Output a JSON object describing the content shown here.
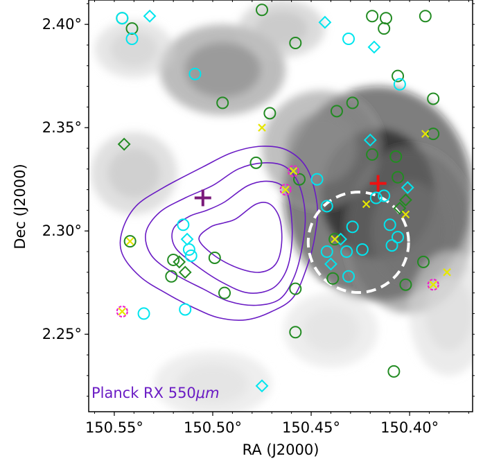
{
  "chart_data": {
    "type": "scatter",
    "title": "",
    "xlabel": "RA (J2000)",
    "ylabel": "Dec (J2000)",
    "xlim": [
      150.563,
      150.368
    ],
    "ylim": [
      2.2125,
      2.4118
    ],
    "x_reversed": true,
    "xticks": [
      150.55,
      150.5,
      150.45,
      150.4
    ],
    "xtick_labels": [
      "150.55°",
      "150.50°",
      "150.45°",
      "150.40°"
    ],
    "yticks": [
      2.4,
      2.35,
      2.3,
      2.25
    ],
    "ytick_labels": [
      "2.40°",
      "2.35°",
      "2.30°",
      "2.25°"
    ],
    "grid": false,
    "annotation": {
      "text": "Planck RX 550",
      "unit": "μm",
      "color": "#6a1bc4"
    },
    "colors": {
      "green_circles": "#228b22",
      "cyan_points": "#00e5ee",
      "contours": "#6a1bc4",
      "red_cross": "#ee1111",
      "purple_cross": "#7a1a7a",
      "yellow_x": "#e6e600",
      "magenta_circles": "#ee22cc"
    },
    "background_blobs": [
      {
        "ra": 150.416,
        "dec": 2.318,
        "rra": 0.048,
        "rdec": 0.052,
        "intensity": 0.92
      },
      {
        "ra": 150.4,
        "dec": 2.3,
        "rra": 0.032,
        "rdec": 0.04,
        "intensity": 0.55
      },
      {
        "ra": 150.445,
        "dec": 2.34,
        "rra": 0.03,
        "rdec": 0.028,
        "intensity": 0.45
      },
      {
        "ra": 150.495,
        "dec": 2.378,
        "rra": 0.032,
        "rdec": 0.022,
        "intensity": 0.48
      },
      {
        "ra": 150.465,
        "dec": 2.398,
        "rra": 0.022,
        "rdec": 0.014,
        "intensity": 0.25
      },
      {
        "ra": 150.54,
        "dec": 2.388,
        "rra": 0.02,
        "rdec": 0.014,
        "intensity": 0.18
      },
      {
        "ra": 150.54,
        "dec": 2.328,
        "rra": 0.022,
        "rdec": 0.02,
        "intensity": 0.22
      },
      {
        "ra": 150.5,
        "dec": 2.226,
        "rra": 0.03,
        "rdec": 0.016,
        "intensity": 0.12
      },
      {
        "ra": 150.38,
        "dec": 2.26,
        "rra": 0.02,
        "rdec": 0.03,
        "intensity": 0.14
      },
      {
        "ra": 150.44,
        "dec": 2.252,
        "rra": 0.024,
        "rdec": 0.018,
        "intensity": 0.12
      }
    ],
    "contours": [
      {
        "level": 1,
        "points": [
          [
            150.505,
            2.331
          ],
          [
            150.49,
            2.338
          ],
          [
            150.475,
            2.341
          ],
          [
            150.462,
            2.339
          ],
          [
            150.452,
            2.33
          ],
          [
            150.447,
            2.313
          ],
          [
            150.448,
            2.298
          ],
          [
            150.452,
            2.283
          ],
          [
            150.459,
            2.268
          ],
          [
            150.47,
            2.261
          ],
          [
            150.483,
            2.257
          ],
          [
            150.497,
            2.258
          ],
          [
            150.51,
            2.263
          ],
          [
            150.524,
            2.27
          ],
          [
            150.537,
            2.278
          ],
          [
            150.546,
            2.289
          ],
          [
            150.546,
            2.3
          ],
          [
            150.539,
            2.312
          ],
          [
            150.525,
            2.321
          ]
        ]
      },
      {
        "level": 2,
        "points": [
          [
            150.5,
            2.322
          ],
          [
            150.487,
            2.33
          ],
          [
            150.474,
            2.333
          ],
          [
            150.463,
            2.331
          ],
          [
            150.456,
            2.322
          ],
          [
            150.453,
            2.307
          ],
          [
            150.455,
            2.29
          ],
          [
            150.459,
            2.277
          ],
          [
            150.466,
            2.267
          ],
          [
            150.478,
            2.264
          ],
          [
            150.492,
            2.266
          ],
          [
            150.505,
            2.272
          ],
          [
            150.519,
            2.279
          ],
          [
            150.531,
            2.288
          ],
          [
            150.534,
            2.299
          ],
          [
            150.527,
            2.309
          ],
          [
            150.514,
            2.316
          ]
        ]
      },
      {
        "level": 3,
        "points": [
          [
            150.494,
            2.314
          ],
          [
            150.482,
            2.322
          ],
          [
            150.471,
            2.324
          ],
          [
            150.463,
            2.32
          ],
          [
            150.46,
            2.307
          ],
          [
            150.46,
            2.292
          ],
          [
            150.463,
            2.28
          ],
          [
            150.47,
            2.272
          ],
          [
            150.482,
            2.27
          ],
          [
            150.495,
            2.275
          ],
          [
            150.508,
            2.283
          ],
          [
            150.519,
            2.292
          ],
          [
            150.52,
            2.301
          ],
          [
            150.512,
            2.307
          ],
          [
            150.503,
            2.31
          ]
        ]
      },
      {
        "level": 4,
        "points": [
          [
            150.488,
            2.306
          ],
          [
            150.478,
            2.313
          ],
          [
            150.471,
            2.313
          ],
          [
            150.466,
            2.306
          ],
          [
            150.465,
            2.294
          ],
          [
            150.468,
            2.284
          ],
          [
            150.476,
            2.28
          ],
          [
            150.487,
            2.282
          ],
          [
            150.499,
            2.288
          ],
          [
            150.507,
            2.296
          ],
          [
            150.501,
            2.302
          ],
          [
            150.494,
            2.304
          ]
        ]
      }
    ],
    "dashed_circle": {
      "ra": 150.426,
      "dec": 2.2945,
      "radius_deg": 0.0255
    },
    "red_cross": {
      "ra": 150.416,
      "dec": 2.323
    },
    "purple_cross": {
      "ra": 150.505,
      "dec": 2.316
    },
    "green_circles": [
      {
        "ra": 150.546,
        "dec": 2.403
      },
      {
        "ra": 150.541,
        "dec": 2.398
      },
      {
        "ra": 150.475,
        "dec": 2.407
      },
      {
        "ra": 150.458,
        "dec": 2.391
      },
      {
        "ra": 150.419,
        "dec": 2.404
      },
      {
        "ra": 150.412,
        "dec": 2.403
      },
      {
        "ra": 150.413,
        "dec": 2.398
      },
      {
        "ra": 150.392,
        "dec": 2.404
      },
      {
        "ra": 150.406,
        "dec": 2.375
      },
      {
        "ra": 150.388,
        "dec": 2.364
      },
      {
        "ra": 150.495,
        "dec": 2.362
      },
      {
        "ra": 150.429,
        "dec": 2.362
      },
      {
        "ra": 150.471,
        "dec": 2.357
      },
      {
        "ra": 150.437,
        "dec": 2.358
      },
      {
        "ra": 150.388,
        "dec": 2.347
      },
      {
        "ra": 150.419,
        "dec": 2.337
      },
      {
        "ra": 150.407,
        "dec": 2.336
      },
      {
        "ra": 150.478,
        "dec": 2.333
      },
      {
        "ra": 150.456,
        "dec": 2.325
      },
      {
        "ra": 150.406,
        "dec": 2.326
      },
      {
        "ra": 150.542,
        "dec": 2.295
      },
      {
        "ra": 150.52,
        "dec": 2.286
      },
      {
        "ra": 150.521,
        "dec": 2.278
      },
      {
        "ra": 150.499,
        "dec": 2.287
      },
      {
        "ra": 150.494,
        "dec": 2.27
      },
      {
        "ra": 150.458,
        "dec": 2.272
      },
      {
        "ra": 150.439,
        "dec": 2.277
      },
      {
        "ra": 150.393,
        "dec": 2.285
      },
      {
        "ra": 150.402,
        "dec": 2.274
      },
      {
        "ra": 150.458,
        "dec": 2.251
      },
      {
        "ra": 150.408,
        "dec": 2.232
      },
      {
        "ra": 150.438,
        "dec": 2.296
      }
    ],
    "cyan_circles": [
      {
        "ra": 150.546,
        "dec": 2.403
      },
      {
        "ra": 150.541,
        "dec": 2.393
      },
      {
        "ra": 150.431,
        "dec": 2.393
      },
      {
        "ra": 150.509,
        "dec": 2.376
      },
      {
        "ra": 150.405,
        "dec": 2.371
      },
      {
        "ra": 150.447,
        "dec": 2.325
      },
      {
        "ra": 150.413,
        "dec": 2.317
      },
      {
        "ra": 150.417,
        "dec": 2.316
      },
      {
        "ra": 150.442,
        "dec": 2.312
      },
      {
        "ra": 150.429,
        "dec": 2.302
      },
      {
        "ra": 150.41,
        "dec": 2.303
      },
      {
        "ra": 150.515,
        "dec": 2.303
      },
      {
        "ra": 150.512,
        "dec": 2.291
      },
      {
        "ra": 150.511,
        "dec": 2.288
      },
      {
        "ra": 150.432,
        "dec": 2.29
      },
      {
        "ra": 150.424,
        "dec": 2.291
      },
      {
        "ra": 150.406,
        "dec": 2.297
      },
      {
        "ra": 150.409,
        "dec": 2.293
      },
      {
        "ra": 150.442,
        "dec": 2.29
      },
      {
        "ra": 150.431,
        "dec": 2.278
      },
      {
        "ra": 150.514,
        "dec": 2.262
      },
      {
        "ra": 150.535,
        "dec": 2.26
      }
    ],
    "cyan_diamonds": [
      {
        "ra": 150.532,
        "dec": 2.404
      },
      {
        "ra": 150.443,
        "dec": 2.401
      },
      {
        "ra": 150.418,
        "dec": 2.389
      },
      {
        "ra": 150.42,
        "dec": 2.344
      },
      {
        "ra": 150.401,
        "dec": 2.321
      },
      {
        "ra": 150.435,
        "dec": 2.296
      },
      {
        "ra": 150.513,
        "dec": 2.296
      },
      {
        "ra": 150.44,
        "dec": 2.284
      },
      {
        "ra": 150.475,
        "dec": 2.225
      }
    ],
    "green_diamonds": [
      {
        "ra": 150.545,
        "dec": 2.342
      },
      {
        "ra": 150.517,
        "dec": 2.285
      },
      {
        "ra": 150.514,
        "dec": 2.28
      },
      {
        "ra": 150.405,
        "dec": 2.311
      },
      {
        "ra": 150.402,
        "dec": 2.315
      }
    ],
    "yellow_x": [
      {
        "ra": 150.475,
        "dec": 2.35
      },
      {
        "ra": 150.392,
        "dec": 2.347
      },
      {
        "ra": 150.459,
        "dec": 2.329
      },
      {
        "ra": 150.463,
        "dec": 2.32
      },
      {
        "ra": 150.422,
        "dec": 2.313
      },
      {
        "ra": 150.402,
        "dec": 2.308
      },
      {
        "ra": 150.542,
        "dec": 2.295
      },
      {
        "ra": 150.438,
        "dec": 2.296
      },
      {
        "ra": 150.381,
        "dec": 2.28
      },
      {
        "ra": 150.388,
        "dec": 2.274
      },
      {
        "ra": 150.546,
        "dec": 2.261
      }
    ],
    "magenta_circles": [
      {
        "ra": 150.459,
        "dec": 2.329
      },
      {
        "ra": 150.463,
        "dec": 2.32
      },
      {
        "ra": 150.388,
        "dec": 2.274
      },
      {
        "ra": 150.546,
        "dec": 2.261
      }
    ]
  }
}
